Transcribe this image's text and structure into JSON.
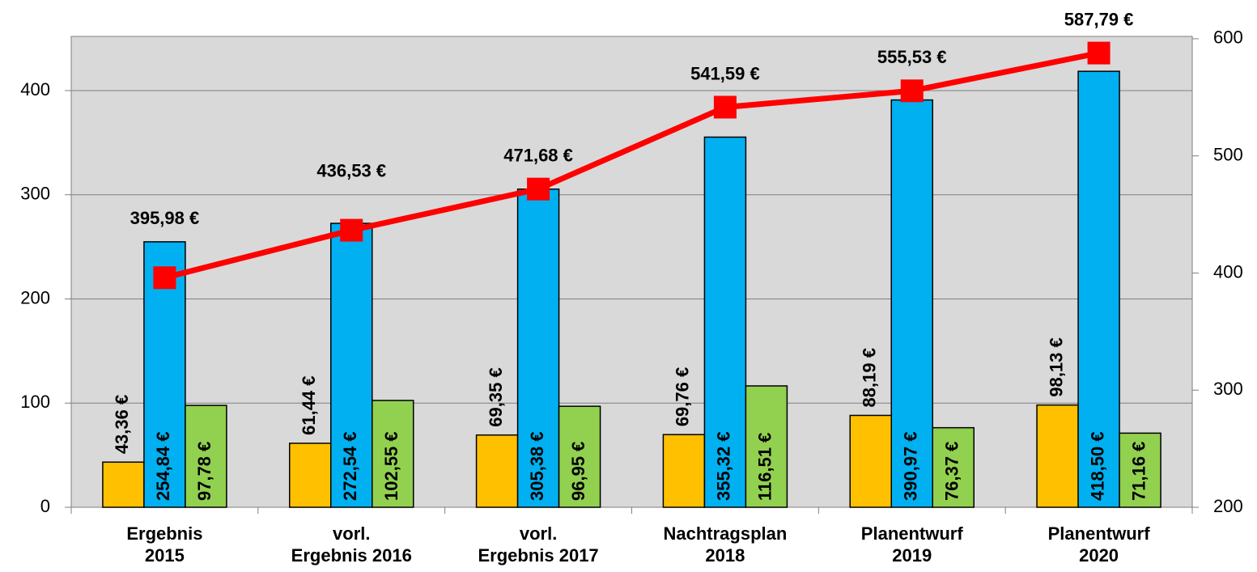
{
  "chart_data": {
    "type": "bar",
    "categories": [
      "Ergebnis\n2015",
      "vorl.\nErgebnis 2016",
      "vorl.\nErgebnis 2017",
      "Nachtragsplan\n2018",
      "Planentwurf\n2019",
      "Planentwurf\n2020"
    ],
    "series": [
      {
        "color": "#FFC000",
        "values": [
          43.36,
          61.44,
          69.35,
          69.76,
          88.19,
          98.13
        ],
        "value_labels": [
          "43,36 €",
          "61,44 €",
          "69,35 €",
          "69,76 €",
          "88,19 €",
          "98,13 €"
        ]
      },
      {
        "color": "#00B0F0",
        "values": [
          254.84,
          272.54,
          305.38,
          355.32,
          390.97,
          418.5
        ],
        "value_labels": [
          "254,84 €",
          "272,54 €",
          "305,38 €",
          "355,32 €",
          "390,97 €",
          "418,50 €"
        ]
      },
      {
        "color": "#92D050",
        "values": [
          97.78,
          102.55,
          96.95,
          116.51,
          76.37,
          71.16
        ],
        "value_labels": [
          "97,78 €",
          "102,55 €",
          "96,95 €",
          "116,51 €",
          "76,37 €",
          "71,16 €"
        ]
      },
      {
        "type": "line",
        "axis": "y2",
        "color": "#FF0000",
        "values": [
          395.98,
          436.53,
          471.68,
          541.59,
          555.53,
          587.79
        ],
        "value_labels": [
          "395,98 €",
          "436,53 €",
          "471,68 €",
          "541,59 €",
          "555,53 €",
          "587,79 €"
        ]
      }
    ],
    "ylim": [
      0,
      452
    ],
    "yticks": [
      0,
      100,
      200,
      300,
      400
    ],
    "y2lim": [
      200,
      602
    ],
    "y2ticks": [
      200,
      300,
      400,
      500,
      600
    ],
    "grid": true
  }
}
